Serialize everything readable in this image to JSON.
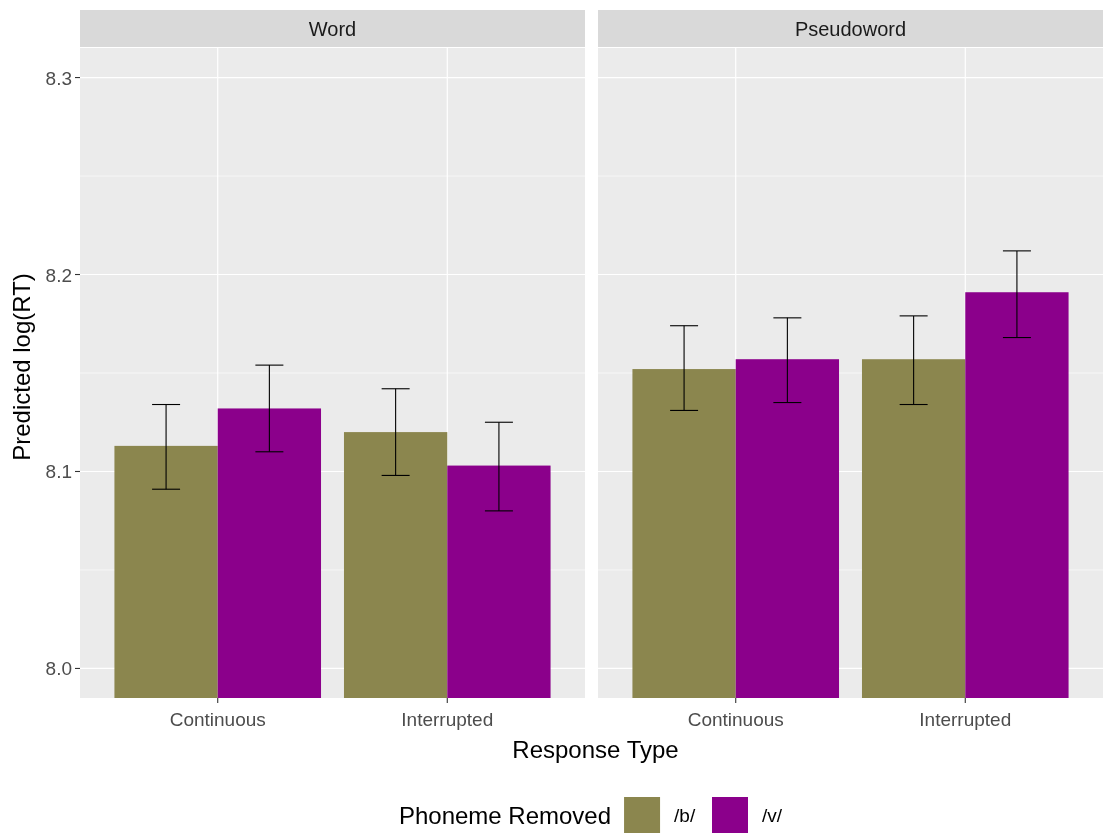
{
  "chart_data": [
    {
      "type": "bar",
      "title": "Word",
      "xlabel": "Response Type",
      "ylabel": "Predicted log(RT)",
      "legend_title": "Phoneme Removed",
      "legend": "bottom",
      "grid": true,
      "categories": [
        "Continuous",
        "Interrupted"
      ],
      "series": [
        {
          "name": "/b/",
          "color": "#8b864e",
          "values": [
            8.113,
            8.12
          ],
          "errors": [
            [
              8.091,
              8.134
            ],
            [
              8.098,
              8.142
            ]
          ]
        },
        {
          "name": "/v/",
          "color": "#8b008b",
          "values": [
            8.132,
            8.103
          ],
          "errors": [
            [
              8.11,
              8.154
            ],
            [
              8.08,
              8.125
            ]
          ]
        }
      ],
      "ylim": [
        7.985,
        8.315
      ],
      "yticks": [
        {
          "value": 8,
          "label": "8.0"
        },
        {
          "value": 8.05,
          "label": null
        },
        {
          "value": 8.1,
          "label": "8.1"
        },
        {
          "value": 8.15,
          "label": null
        },
        {
          "value": 8.2,
          "label": "8.2"
        },
        {
          "value": 8.25,
          "label": null
        },
        {
          "value": 8.3,
          "label": "8.3"
        }
      ]
    },
    {
      "type": "bar",
      "title": "Pseudoword",
      "grid": true,
      "tick_labels": "x",
      "categories": [
        "Continuous",
        "Interrupted"
      ],
      "series": [
        {
          "color": "#8b864e",
          "values": [
            8.152,
            8.157
          ],
          "errors": [
            [
              8.131,
              8.174
            ],
            [
              8.134,
              8.179
            ]
          ]
        },
        {
          "color": "#8b008b",
          "values": [
            8.157,
            8.191
          ],
          "errors": [
            [
              8.135,
              8.178
            ],
            [
              8.168,
              8.212
            ]
          ]
        }
      ],
      "ylim": [
        7.985,
        8.315
      ],
      "yticks": [
        8,
        {
          "value": 8.05,
          "label": null
        },
        8.1,
        {
          "value": 8.15,
          "label": null
        },
        8.2,
        {
          "value": 8.25,
          "label": null
        },
        8.3
      ]
    }
  ]
}
